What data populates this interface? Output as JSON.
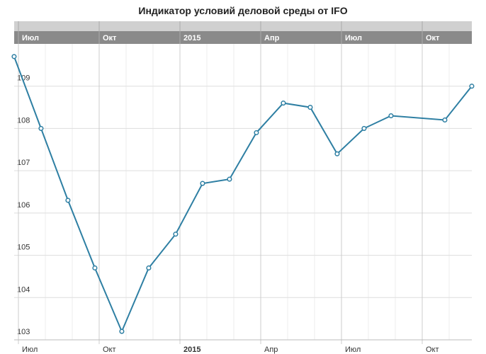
{
  "chart_data": {
    "type": "line",
    "title": "Индикатор условий деловой среды от IFO",
    "x": [
      "2014-06",
      "2014-07",
      "2014-08",
      "2014-09",
      "2014-10",
      "2014-11",
      "2014-12",
      "2015-01",
      "2015-02",
      "2015-03",
      "2015-04",
      "2015-05",
      "2015-06",
      "2015-07",
      "2015-08",
      "2015-10",
      "2015-11"
    ],
    "series": [
      {
        "color": "#2e7fa3",
        "values": [
          109.7,
          108.0,
          106.3,
          104.7,
          103.2,
          104.7,
          105.5,
          106.7,
          106.8,
          107.9,
          108.6,
          108.5,
          107.4,
          108.0,
          108.3,
          108.2,
          109.0
        ]
      }
    ],
    "xticks": [
      {
        "value": "2014-07",
        "label": "Июл"
      },
      {
        "value": "2014-10",
        "label": "Окт"
      },
      {
        "value": "2015-01",
        "label": "2015"
      },
      {
        "value": "2015-04",
        "label": "Апр"
      },
      {
        "value": "2015-07",
        "label": "Июл"
      },
      {
        "value": "2015-10",
        "label": "Окт"
      }
    ],
    "ylim": [
      103,
      110
    ],
    "yticks": [
      103,
      104,
      105,
      106,
      107,
      108,
      109
    ],
    "grid": true
  }
}
